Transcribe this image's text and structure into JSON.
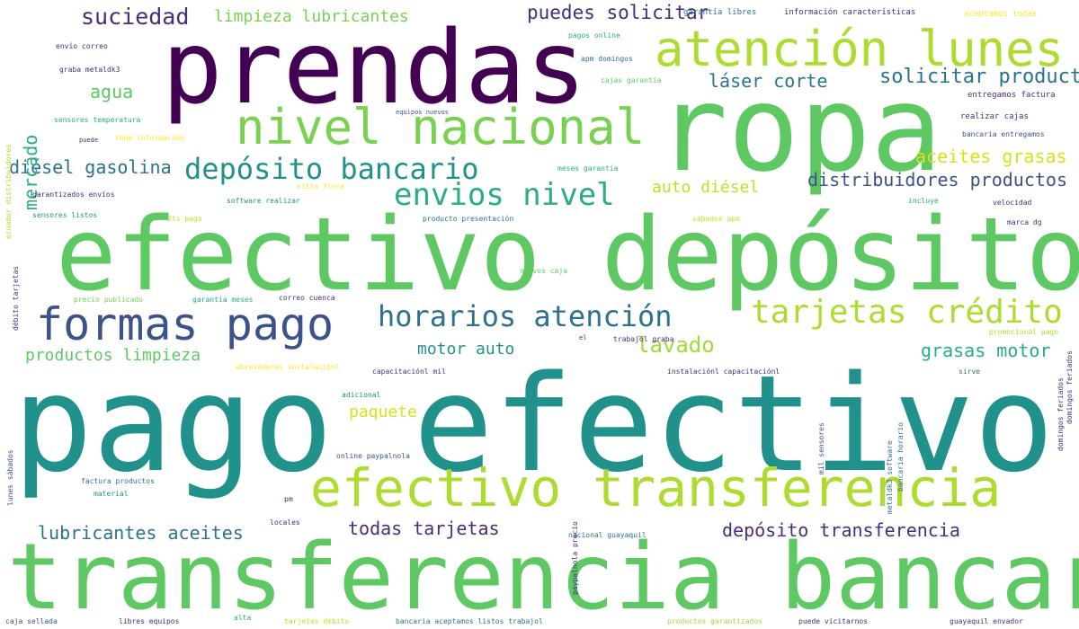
{
  "colors": {
    "background": "#ffffff",
    "c1": "#440154",
    "c2": "#472d7b",
    "c3": "#3b528b",
    "c4": "#2c728e",
    "c5": "#21918c",
    "c6": "#28ae80",
    "c7": "#5ec962",
    "c8": "#addc30",
    "c9": "#fde725"
  },
  "words": [
    {
      "text": "pago efectivo",
      "color": "#21918c"
    },
    {
      "text": "transferencia bancaria",
      "color": "#5ec962"
    },
    {
      "text": "efectivo depósito",
      "color": "#5ec962"
    },
    {
      "text": "ropa",
      "color": "#5ec962"
    },
    {
      "text": "prendas",
      "color": "#440154"
    },
    {
      "text": "efectivo transferencia",
      "color": "#addc30"
    },
    {
      "text": "atención lunes",
      "color": "#addc30"
    },
    {
      "text": "nivel nacional",
      "color": "#7ad151"
    },
    {
      "text": "formas pago",
      "color": "#3b528b"
    },
    {
      "text": "horarios atención",
      "color": "#2c728e"
    },
    {
      "text": "tarjetas crédito",
      "color": "#addc30"
    },
    {
      "text": "depósito bancario",
      "color": "#21918c"
    },
    {
      "text": "envios nivel",
      "color": "#28ae80"
    },
    {
      "text": "suciedad",
      "color": "#472d7b"
    },
    {
      "text": "limpieza lubricantes",
      "color": "#7ad151"
    },
    {
      "text": "puedes solicitar",
      "color": "#472d7b"
    },
    {
      "text": "solicitar producto",
      "color": "#2c728e"
    },
    {
      "text": "láser corte",
      "color": "#2c728e"
    },
    {
      "text": "agua",
      "color": "#5ec962"
    },
    {
      "text": "diésel gasolina",
      "color": "#2c728e"
    },
    {
      "text": "aceites grasas",
      "color": "#d8e219"
    },
    {
      "text": "distribuidores productos",
      "color": "#3b528b"
    },
    {
      "text": "auto diésel",
      "color": "#c2df23"
    },
    {
      "text": "motor auto",
      "color": "#21918c"
    },
    {
      "text": "lavado",
      "color": "#a0da39"
    },
    {
      "text": "grasas motor",
      "color": "#28ae80"
    },
    {
      "text": "productos limpieza",
      "color": "#5ec962"
    },
    {
      "text": "paquete",
      "color": "#d8e219"
    },
    {
      "text": "lubricantes aceites",
      "color": "#2c728e"
    },
    {
      "text": "todas tarjetas",
      "color": "#472d7b"
    },
    {
      "text": "depósito transferencia",
      "color": "#472d7b"
    },
    {
      "text": "mercado",
      "color": "#28ae80"
    },
    {
      "text": "garantía libres",
      "color": "#2c728e"
    },
    {
      "text": "información características",
      "color": "#472d7b"
    },
    {
      "text": "aceptamos todas",
      "color": "#fde725"
    },
    {
      "text": "pagos online",
      "color": "#28ae80"
    },
    {
      "text": "apm domingos",
      "color": "#2c728e"
    },
    {
      "text": "cajas garantía",
      "color": "#5ec962"
    },
    {
      "text": "entregamos factura",
      "color": "#472d7b"
    },
    {
      "text": "realizar cajas",
      "color": "#472d7b"
    },
    {
      "text": "bancaria entregamos",
      "color": "#3b528b"
    },
    {
      "text": "envío correo",
      "color": "#472d7b"
    },
    {
      "text": "graba metaldk3",
      "color": "#472d7b"
    },
    {
      "text": "sensores temperatura",
      "color": "#28ae80"
    },
    {
      "text": "equipos nuevos",
      "color": "#3b528b"
    },
    {
      "text": "toda información",
      "color": "#fde725"
    },
    {
      "text": "puede",
      "color": "#472d7b"
    },
    {
      "text": "meses garantía",
      "color": "#28ae80"
    },
    {
      "text": "silla flora",
      "color": "#fde725"
    },
    {
      "text": "garantizados envíos",
      "color": "#472d7b"
    },
    {
      "text": "software realizar",
      "color": "#21918c"
    },
    {
      "text": "incluye",
      "color": "#28ae80"
    },
    {
      "text": "velocidad",
      "color": "#472d7b"
    },
    {
      "text": "sensores listos",
      "color": "#21918c"
    },
    {
      "text": "2ts pago",
      "color": "#c2df23"
    },
    {
      "text": "producto presentación",
      "color": "#2c728e"
    },
    {
      "text": "sábados apm",
      "color": "#c2df23"
    },
    {
      "text": "marca dg",
      "color": "#472d7b"
    },
    {
      "text": "nuevos caja",
      "color": "#5ec962"
    },
    {
      "text": "precio publicado",
      "color": "#7ad151"
    },
    {
      "text": "garantía meses",
      "color": "#28ae80"
    },
    {
      "text": "correo cuenca",
      "color": "#472d7b"
    },
    {
      "text": "el",
      "color": "#472d7b"
    },
    {
      "text": "trabajol graba",
      "color": "#472d7b"
    },
    {
      "text": "promocional pago",
      "color": "#addc30"
    },
    {
      "text": "abrazaderas instalaciónl",
      "color": "#fde725"
    },
    {
      "text": "capacitaciónl mil",
      "color": "#472d7b"
    },
    {
      "text": "instalaciónl capacitaciónl",
      "color": "#472d7b"
    },
    {
      "text": "sirve",
      "color": "#2c728e"
    },
    {
      "text": "adicional",
      "color": "#21918c"
    },
    {
      "text": "online paypalnola",
      "color": "#3b528b"
    },
    {
      "text": "factura productos",
      "color": "#2c728e"
    },
    {
      "text": "material",
      "color": "#21918c"
    },
    {
      "text": "pm",
      "color": "#472d7b"
    },
    {
      "text": "locales",
      "color": "#472d7b"
    },
    {
      "text": "nacional guayaquil",
      "color": "#2c728e"
    },
    {
      "text": "caja sellada",
      "color": "#3b528b"
    },
    {
      "text": "libres equipos",
      "color": "#472d7b"
    },
    {
      "text": "alta",
      "color": "#28ae80"
    },
    {
      "text": "tarjetas débito",
      "color": "#c2df23"
    },
    {
      "text": "bancaria aceptamos listos trabajol",
      "color": "#2c728e"
    },
    {
      "text": "productos garantizados",
      "color": "#a0da39"
    },
    {
      "text": "puede vicitarnos",
      "color": "#472d7b"
    },
    {
      "text": "guayaquil envador",
      "color": "#472d7b"
    },
    {
      "text": "ecuador distribuidores",
      "color": "#addc30"
    },
    {
      "text": "débito tarjetas",
      "color": "#472d7b"
    },
    {
      "text": "lunes sábados",
      "color": "#3b528b"
    },
    {
      "text": "paypalnola precio",
      "color": "#472d7b"
    },
    {
      "text": "mil sensores",
      "color": "#3b528b"
    },
    {
      "text": "metaldk3 software",
      "color": "#2c728e"
    },
    {
      "text": "bancaria horario",
      "color": "#2c728e"
    },
    {
      "text": "domingos feriados",
      "color": "#472d7b"
    },
    {
      "text": "domingos feriados",
      "color": "#472d7b"
    }
  ]
}
